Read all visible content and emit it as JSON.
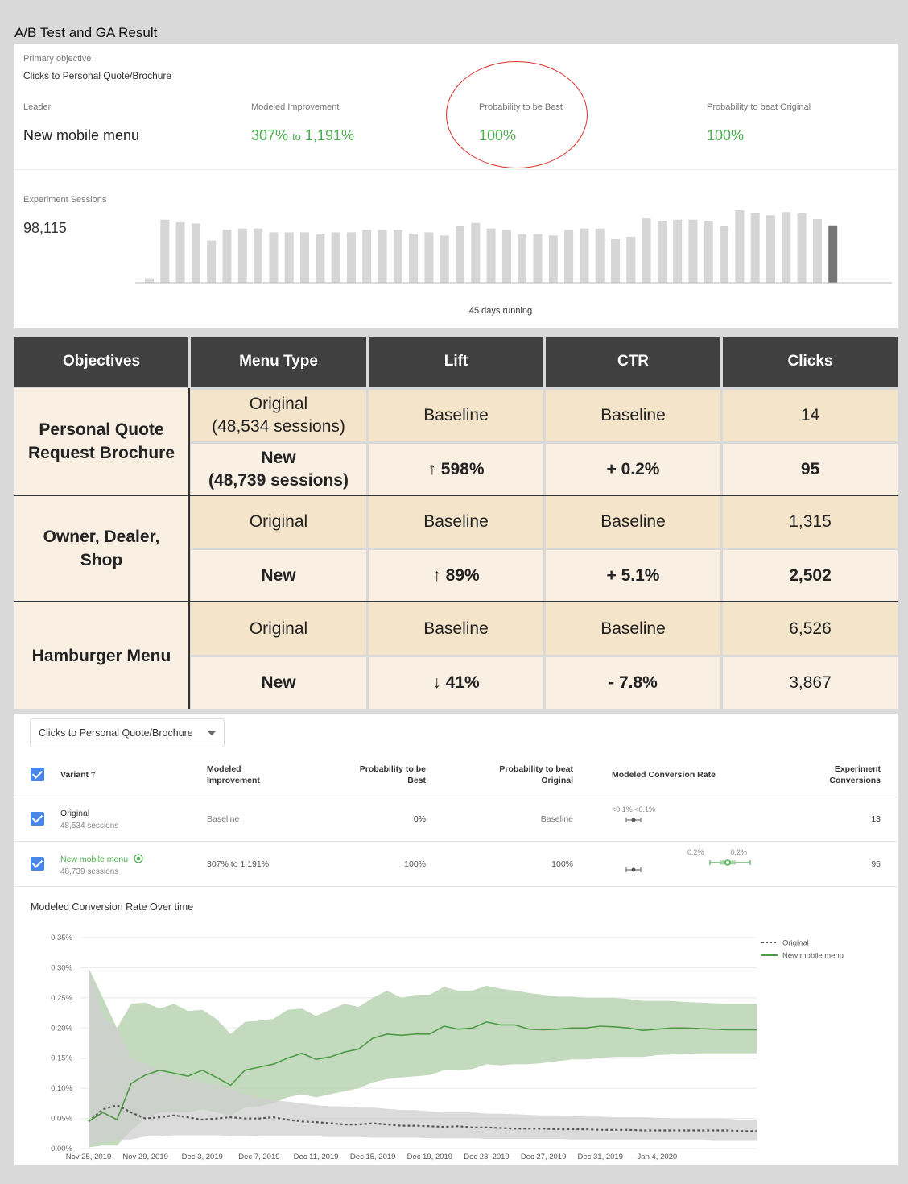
{
  "page_title": "A/B Test and GA Result",
  "summary": {
    "primary_objective_label": "Primary objective",
    "primary_objective": "Clicks to Personal Quote/Brochure",
    "leader_label": "Leader",
    "leader": "New mobile menu",
    "modeled_improvement_label": "Modeled Improvement",
    "modeled_improvement_low": "307%",
    "modeled_improvement_to": "to",
    "modeled_improvement_high": "1,191%",
    "prob_best_label": "Probability to be Best",
    "prob_best": "100%",
    "prob_beat_label": "Probability to beat Original",
    "prob_beat": "100%",
    "sessions_label": "Experiment Sessions",
    "sessions": "98,115",
    "days_running": "45 days running",
    "daily_sessions_relative": [
      0.07,
      1,
      0.96,
      0.94,
      0.67,
      0.84,
      0.86,
      0.86,
      0.8,
      0.8,
      0.8,
      0.78,
      0.8,
      0.8,
      0.84,
      0.84,
      0.84,
      0.78,
      0.8,
      0.75,
      0.9,
      0.95,
      0.86,
      0.84,
      0.77,
      0.77,
      0.75,
      0.84,
      0.86,
      0.86,
      0.69,
      0.73,
      1.02,
      0.98,
      1.0,
      1.0,
      0.98,
      0.9,
      1.15,
      1.1,
      1.07,
      1.12,
      1.1,
      1.01,
      0.91
    ],
    "highlight_last_bar": true
  },
  "comparison": {
    "headers": [
      "Objectives",
      "Menu Type",
      "Lift",
      "CTR",
      "Clicks"
    ],
    "groups": [
      {
        "objective": "Personal Quote Request Brochure",
        "original": {
          "menu": "Original\n(48,534 sessions)",
          "lift": "Baseline",
          "ctr": "Baseline",
          "clicks": "14"
        },
        "new": {
          "menu": "New\n(48,739 sessions)",
          "lift": "↑ 598%",
          "ctr": "+ 0.2%",
          "clicks": "95",
          "direction": "up"
        }
      },
      {
        "objective": "Owner, Dealer, Shop",
        "original": {
          "menu": "Original",
          "lift": "Baseline",
          "ctr": "Baseline",
          "clicks": "1,315"
        },
        "new": {
          "menu": "New",
          "lift": "↑ 89%",
          "ctr": "+ 5.1%",
          "clicks": "2,502",
          "direction": "up"
        }
      },
      {
        "objective": "Hamburger Menu",
        "original": {
          "menu": "Original",
          "lift": "Baseline",
          "ctr": "Baseline",
          "clicks": "6,526"
        },
        "new": {
          "menu": "New",
          "lift": "↓ 41%",
          "ctr": "- 7.8%",
          "clicks": "3,867",
          "direction": "down"
        }
      }
    ]
  },
  "report": {
    "objective_select": "Clicks to Personal Quote/Brochure",
    "columns": {
      "variant": "Variant",
      "variant_sort_icon": "arrow-up-icon",
      "modeled_improvement": "Modeled\nImprovement",
      "prob_best": "Probability to be\nBest",
      "prob_beat": "Probability to beat\nOriginal",
      "conversion_rate": "Modeled Conversion Rate",
      "conversions": "Experiment\nConversions"
    },
    "rows": [
      {
        "name": "Original",
        "sessions": "48,534 sessions",
        "improvement": "Baseline",
        "prob_best": "0%",
        "prob_beat": "Baseline",
        "rate_low": "<0.1%",
        "rate_high": "<0.1%",
        "conversions": "13"
      },
      {
        "name": "New mobile menu",
        "leader_icon": "star-badge-icon",
        "sessions": "48,739 sessions",
        "improvement": "307% to 1,191%",
        "prob_best": "100%",
        "prob_beat": "100%",
        "rate_low": "0.2%",
        "rate_high": "0.2%",
        "conversions": "95"
      }
    ],
    "chart_title": "Modeled Conversion Rate Over time"
  },
  "colors": {
    "green": "#4caf50",
    "red": "#e53935",
    "original_series": "#555555",
    "new_series": "#4e9a47",
    "new_band": "#b9d4b3",
    "original_band": "#cfcfcf"
  },
  "chart_data": {
    "type": "line",
    "title": "Modeled Conversion Rate Over time",
    "xlabel": "",
    "ylabel": "",
    "y_ticks": [
      "0.00%",
      "0.05%",
      "0.10%",
      "0.15%",
      "0.20%",
      "0.25%",
      "0.30%",
      "0.35%"
    ],
    "ylim": [
      0,
      0.35
    ],
    "x_start": "Nov 25, 2019",
    "x_ticks": [
      "Nov 25, 2019",
      "Nov 29, 2019",
      "Dec 3, 2019",
      "Dec 7, 2019",
      "Dec 11, 2019",
      "Dec 15, 2019",
      "Dec 19, 2019",
      "Dec 23, 2019",
      "Dec 27, 2019",
      "Dec 31, 2019",
      "Jan 4, 2020"
    ],
    "legend_position": "top-right",
    "grid": true,
    "series": [
      {
        "name": "Original",
        "style": "dashed",
        "values": [
          0.045,
          0.065,
          0.072,
          0.06,
          0.05,
          0.052,
          0.055,
          0.052,
          0.048,
          0.05,
          0.052,
          0.05,
          0.05,
          0.052,
          0.048,
          0.045,
          0.044,
          0.042,
          0.04,
          0.04,
          0.042,
          0.04,
          0.038,
          0.038,
          0.037,
          0.036,
          0.037,
          0.035,
          0.035,
          0.034,
          0.033,
          0.033,
          0.033,
          0.032,
          0.032,
          0.032,
          0.031,
          0.031,
          0.031,
          0.03,
          0.03,
          0.03,
          0.03,
          0.03,
          0.03,
          0.03,
          0.029,
          0.029
        ],
        "band_upper": [
          0.3,
          0.22,
          0.2,
          0.15,
          0.14,
          0.13,
          0.12,
          0.115,
          0.11,
          0.105,
          0.1,
          0.09,
          0.085,
          0.08,
          0.078,
          0.075,
          0.072,
          0.07,
          0.07,
          0.068,
          0.068,
          0.066,
          0.064,
          0.064,
          0.062,
          0.06,
          0.06,
          0.06,
          0.058,
          0.058,
          0.057,
          0.056,
          0.055,
          0.055,
          0.054,
          0.053,
          0.053,
          0.052,
          0.052,
          0.052,
          0.051,
          0.05,
          0.05,
          0.05,
          0.05,
          0.049,
          0.048,
          0.048
        ],
        "band_lower": [
          0.005,
          0.01,
          0.015,
          0.015,
          0.02,
          0.02,
          0.022,
          0.022,
          0.022,
          0.022,
          0.021,
          0.021,
          0.02,
          0.02,
          0.02,
          0.02,
          0.02,
          0.019,
          0.019,
          0.019,
          0.018,
          0.018,
          0.018,
          0.018,
          0.017,
          0.017,
          0.017,
          0.017,
          0.016,
          0.016,
          0.016,
          0.016,
          0.016,
          0.016,
          0.015,
          0.015,
          0.015,
          0.015,
          0.015,
          0.015,
          0.015,
          0.015,
          0.015,
          0.015,
          0.014,
          0.014,
          0.014,
          0.014
        ]
      },
      {
        "name": "New mobile menu",
        "style": "solid",
        "values": [
          0.045,
          0.06,
          0.048,
          0.108,
          0.122,
          0.13,
          0.125,
          0.12,
          0.13,
          0.118,
          0.105,
          0.13,
          0.135,
          0.14,
          0.15,
          0.158,
          0.148,
          0.152,
          0.16,
          0.165,
          0.183,
          0.19,
          0.188,
          0.19,
          0.19,
          0.203,
          0.198,
          0.2,
          0.21,
          0.205,
          0.205,
          0.198,
          0.197,
          0.198,
          0.2,
          0.2,
          0.203,
          0.202,
          0.2,
          0.196,
          0.198,
          0.2,
          0.2,
          0.199,
          0.198,
          0.197,
          0.197,
          0.197
        ],
        "band_upper": [
          0.3,
          0.25,
          0.2,
          0.24,
          0.242,
          0.232,
          0.24,
          0.228,
          0.23,
          0.215,
          0.19,
          0.21,
          0.212,
          0.215,
          0.23,
          0.232,
          0.22,
          0.23,
          0.24,
          0.235,
          0.25,
          0.262,
          0.25,
          0.255,
          0.255,
          0.268,
          0.262,
          0.262,
          0.27,
          0.265,
          0.262,
          0.258,
          0.255,
          0.252,
          0.252,
          0.25,
          0.25,
          0.25,
          0.248,
          0.245,
          0.245,
          0.245,
          0.243,
          0.242,
          0.241,
          0.24,
          0.24,
          0.24
        ],
        "band_lower": [
          0.002,
          0.005,
          0.005,
          0.03,
          0.05,
          0.06,
          0.06,
          0.06,
          0.065,
          0.06,
          0.055,
          0.068,
          0.07,
          0.075,
          0.085,
          0.09,
          0.085,
          0.09,
          0.095,
          0.1,
          0.11,
          0.115,
          0.118,
          0.12,
          0.122,
          0.13,
          0.13,
          0.132,
          0.14,
          0.138,
          0.14,
          0.14,
          0.142,
          0.145,
          0.148,
          0.148,
          0.15,
          0.152,
          0.152,
          0.152,
          0.155,
          0.156,
          0.157,
          0.158,
          0.158,
          0.158,
          0.158,
          0.158
        ]
      }
    ]
  }
}
